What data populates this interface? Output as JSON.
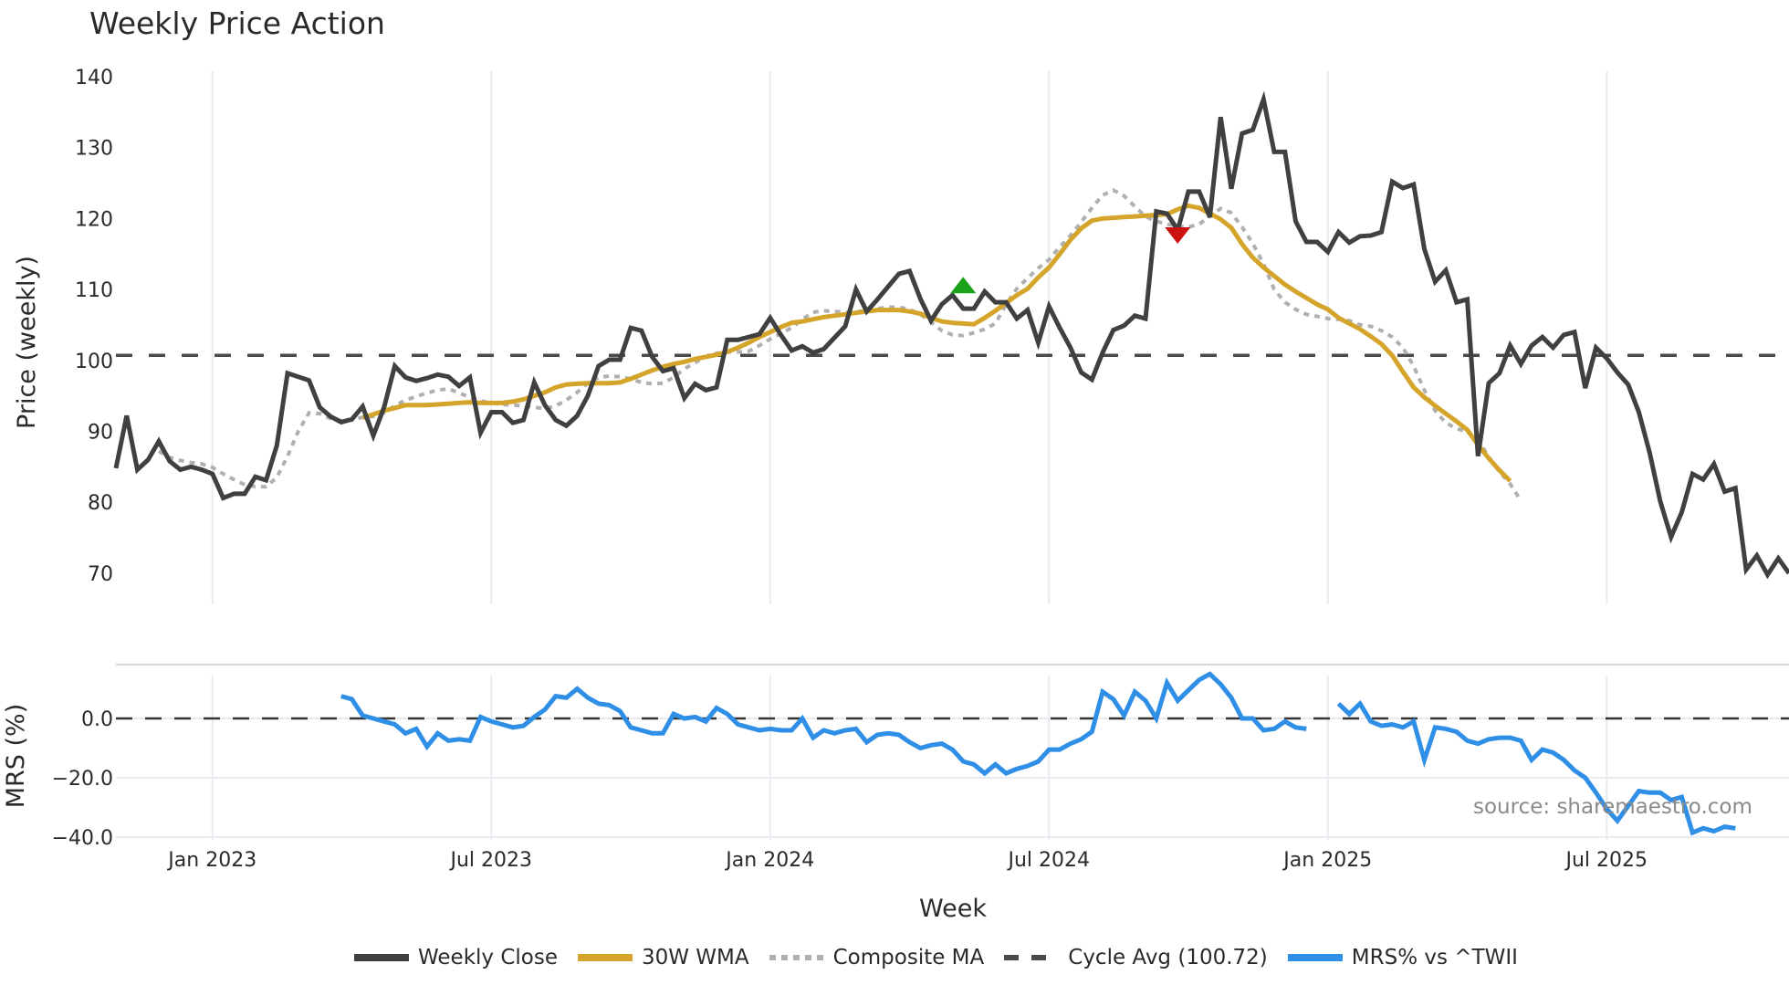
{
  "title": "Weekly Price Action",
  "source_text": "source: sharemaestro.com",
  "colors": {
    "weekly_close": "#404040",
    "wma": "#d4a52a",
    "composite": "#b0b0b0",
    "cycle_avg": "#4a4a4a",
    "mrs": "#2f8fe6",
    "buy_marker": "#1aa31a",
    "sell_marker": "#cc1111",
    "grid": "#e8ecf0"
  },
  "legend": [
    {
      "key": "weekly_close",
      "label": "Weekly Close",
      "style": "solid"
    },
    {
      "key": "wma",
      "label": "30W WMA",
      "style": "solid"
    },
    {
      "key": "composite",
      "label": "Composite MA",
      "style": "dotted"
    },
    {
      "key": "cycle_avg",
      "label": "Cycle Avg (100.72)",
      "style": "dashed"
    },
    {
      "key": "mrs",
      "label": "MRS% vs ^TWII",
      "style": "solid"
    }
  ],
  "chart_data": [
    {
      "type": "line",
      "title": "Weekly Price Action",
      "xlabel": "Week",
      "ylabel": "Price (weekly)",
      "ylim": [
        65,
        142
      ],
      "yticks": [
        70,
        80,
        90,
        100,
        110,
        120,
        130,
        140
      ],
      "xticks": [
        "Jan 2023",
        "Jul 2023",
        "Jan 2024",
        "Jul 2024",
        "Jan 2025",
        "Jul 2025"
      ],
      "xtick_week_index": [
        9,
        35,
        61,
        87,
        113,
        139
      ],
      "grid": "vertical",
      "x_start": "2022-10-31",
      "x_step": "1 week",
      "cycle_avg": 100.72,
      "series": [
        {
          "name": "Weekly Close",
          "values": [
            84.8,
            92.2,
            84.6,
            86.0,
            88.6,
            85.8,
            84.6,
            85.0,
            84.6,
            84.0,
            80.6,
            81.2,
            81.2,
            83.6,
            83.1,
            88.0,
            98.2,
            97.7,
            97.2,
            93.4,
            92.1,
            91.3,
            91.7,
            93.5,
            89.4,
            93.4,
            99.2,
            97.6,
            97.1,
            97.5,
            98.0,
            97.7,
            96.4,
            97.6,
            89.8,
            92.7,
            92.7,
            91.2,
            91.6,
            96.9,
            93.7,
            91.6,
            90.8,
            92.2,
            95.0,
            99.2,
            100.1,
            100.1,
            104.6,
            104.2,
            100.5,
            98.5,
            98.9,
            94.7,
            96.7,
            95.8,
            96.2,
            102.9,
            102.9,
            103.3,
            103.7,
            106.0,
            103.6,
            101.4,
            102.0,
            101.1,
            101.6,
            103.2,
            104.8,
            110.0,
            106.9,
            108.6,
            110.4,
            112.2,
            112.6,
            108.7,
            105.6,
            107.9,
            109.2,
            107.3,
            107.3,
            109.7,
            108.2,
            108.2,
            105.9,
            107.1,
            102.5,
            107.6,
            104.6,
            101.8,
            98.3,
            97.3,
            101.1,
            104.3,
            104.9,
            106.3,
            105.9,
            121.0,
            120.7,
            118.4,
            123.8,
            123.8,
            120.2,
            134.3,
            124.2,
            132.0,
            132.5,
            136.8,
            129.4,
            129.4,
            119.6,
            116.7,
            116.7,
            115.3,
            118.1,
            116.6,
            117.5,
            117.6,
            118.1,
            125.2,
            124.3,
            124.8,
            115.7,
            111.1,
            112.7,
            108.2,
            108.6,
            86.5,
            96.8,
            98.2,
            102.1,
            99.5,
            102.1,
            103.3,
            101.8,
            103.6,
            104.0,
            96.1,
            101.8,
            100.3,
            98.3,
            96.6,
            92.7,
            87.0,
            80.1,
            75.1,
            78.6,
            84.0,
            83.2,
            85.4,
            81.5,
            82.0,
            70.5,
            72.5,
            69.8,
            72.1,
            70.0
          ]
        },
        {
          "name": "30W WMA",
          "start_index": 23,
          "values": [
            91.9,
            92.4,
            92.9,
            93.3,
            93.7,
            93.7,
            93.7,
            93.8,
            93.9,
            94.0,
            94.1,
            94.0,
            94.0,
            94.0,
            94.2,
            94.5,
            95.0,
            95.5,
            96.2,
            96.6,
            96.7,
            96.8,
            96.8,
            96.8,
            96.9,
            97.4,
            98.0,
            98.6,
            99.1,
            99.5,
            99.8,
            100.2,
            100.5,
            100.8,
            101.2,
            101.8,
            102.5,
            103.3,
            104.0,
            104.7,
            105.3,
            105.5,
            105.8,
            106.1,
            106.3,
            106.5,
            106.7,
            106.9,
            107.1,
            107.1,
            107.1,
            106.9,
            106.6,
            106.0,
            105.5,
            105.3,
            105.2,
            105.1,
            106.0,
            107.0,
            108.1,
            109.2,
            110.1,
            111.7,
            113.1,
            115.0,
            117.0,
            118.6,
            119.7,
            120.0,
            120.1,
            120.2,
            120.3,
            120.4,
            120.5,
            120.6,
            121.3,
            121.8,
            121.5,
            120.7,
            119.9,
            118.7,
            116.4,
            114.5,
            113.1,
            111.9,
            110.7,
            109.7,
            108.8,
            107.9,
            107.2,
            106.0,
            105.2,
            104.4,
            103.4,
            102.3,
            100.7,
            98.4,
            96.2,
            94.8,
            93.6,
            92.5,
            91.4,
            90.2,
            88.1,
            86.2,
            84.5,
            83.0
          ]
        },
        {
          "name": "Composite MA",
          "start_index": 4,
          "values": [
            87.2,
            86.3,
            85.9,
            85.6,
            85.4,
            84.9,
            84.0,
            83.2,
            82.5,
            82.2,
            82.2,
            83.5,
            86.5,
            90.0,
            92.6,
            92.5,
            91.8,
            91.5,
            91.6,
            92.0,
            92.1,
            92.6,
            93.6,
            94.4,
            94.9,
            95.4,
            95.8,
            96.0,
            95.4,
            94.8,
            94.3,
            94.0,
            93.8,
            93.7,
            93.6,
            93.4,
            93.2,
            93.6,
            94.4,
            95.5,
            96.8,
            97.6,
            97.8,
            97.7,
            97.4,
            96.9,
            96.7,
            96.8,
            97.6,
            98.8,
            99.7,
            100.5,
            101.0,
            101.2,
            101.2,
            101.3,
            102.1,
            103.0,
            103.8,
            104.6,
            105.8,
            106.8,
            107.0,
            106.9,
            106.8,
            106.8,
            107.1,
            107.3,
            107.5,
            107.5,
            107.2,
            106.5,
            105.4,
            104.2,
            103.6,
            103.5,
            103.9,
            104.4,
            105.2,
            107.9,
            110.1,
            111.6,
            113.0,
            114.2,
            116.0,
            117.6,
            119.5,
            121.5,
            123.3,
            124.0,
            123.2,
            121.7,
            120.3,
            119.6,
            119.2,
            118.9,
            118.8,
            119.2,
            120.3,
            121.4,
            120.8,
            118.8,
            116.5,
            113.6,
            110.0,
            108.2,
            107.2,
            106.5,
            106.2,
            105.9,
            105.8,
            105.6,
            105.0,
            104.8,
            104.2,
            103.3,
            101.8,
            99.2,
            95.8,
            92.9,
            91.2,
            90.4,
            89.9,
            88.8,
            86.4,
            84.3,
            82.6,
            80.2
          ]
        },
        {
          "name": "Cycle Avg (100.72)",
          "value": 100.72
        }
      ],
      "markers": [
        {
          "type": "buy",
          "shape": "triangle-up",
          "week_index": 79,
          "value": 110.5
        },
        {
          "type": "sell",
          "shape": "triangle-down",
          "week_index": 99,
          "value": 117.6
        }
      ]
    },
    {
      "type": "line",
      "ylabel": "MRS (%)",
      "ylim": [
        -42,
        16
      ],
      "yticks": [
        0.0,
        -20.0,
        -40.0
      ],
      "ytick_labels": [
        "0.0",
        "−20.0",
        "−40.0"
      ],
      "zero_line": "dashed",
      "series": [
        {
          "name": "MRS% vs ^TWII",
          "start_index": 21,
          "values": [
            7.5,
            6.5,
            1.0,
            0.0,
            -1.0,
            -2.0,
            -5.0,
            -3.5,
            -9.5,
            -5.0,
            -7.5,
            -7.0,
            -7.5,
            0.5,
            -1.0,
            -2.0,
            -3.0,
            -2.5,
            0.5,
            3.0,
            7.5,
            7.0,
            10.0,
            7.0,
            5.0,
            4.5,
            2.5,
            -3.0,
            -4.0,
            -5.0,
            -5.0,
            1.5,
            0.0,
            0.5,
            -1.0,
            3.5,
            1.5,
            -2.0,
            -3.0,
            -4.0,
            -3.5,
            -4.0,
            -4.0,
            0.0,
            -6.5,
            -4.0,
            -5.0,
            -4.0,
            -3.5,
            -8.0,
            -5.5,
            -5.0,
            -5.5,
            -8.0,
            -10.0,
            -9.0,
            -8.5,
            -10.5,
            -14.5,
            -15.5,
            -18.5,
            -15.5,
            -18.5,
            -17.0,
            -16.0,
            -14.5,
            -10.5,
            -10.5,
            -8.5,
            -7.0,
            -4.5,
            9.0,
            6.5,
            1.0,
            9.0,
            6.0,
            0.0,
            12.0,
            6.0,
            9.5,
            13.0,
            15.0,
            11.5,
            7.0,
            0.0,
            0.0,
            -4.0,
            -3.5,
            -1.0,
            -3.0,
            -3.5,
            null,
            null,
            5.0,
            1.5,
            5.0,
            -1.0,
            -2.5,
            -2.0,
            -3.0,
            -1.0,
            -14.0,
            -3.0,
            -3.5,
            -4.5,
            -7.5,
            -8.5,
            -7.0,
            -6.5,
            -6.5,
            -7.5,
            -14.0,
            -10.5,
            -11.5,
            -14.0,
            -17.5,
            -20.0,
            -25.0,
            -30.5,
            -34.5,
            -29.5,
            -24.5,
            -25.0,
            -25.0,
            -27.5,
            -26.5,
            -38.5,
            -37.0,
            -38.0,
            -36.5,
            -37.0
          ]
        }
      ]
    }
  ],
  "axes": {
    "price_ylabel": "Price (weekly)",
    "mrs_ylabel": "MRS (%)",
    "xlabel": "Week"
  }
}
